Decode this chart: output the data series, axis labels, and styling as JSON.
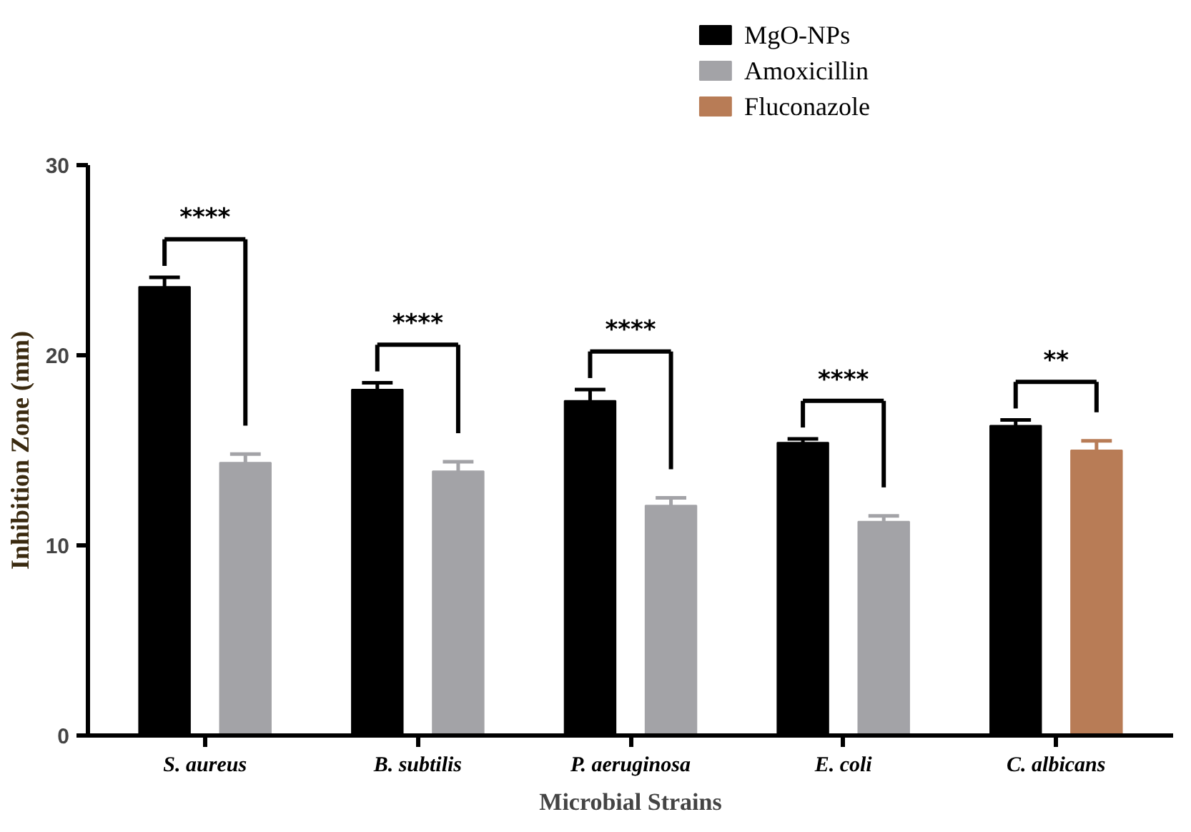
{
  "chart_data": {
    "type": "bar",
    "categories": [
      "S. aureus",
      "B. subtilis",
      "P. aeruginosa",
      "E. coli",
      "C. albicans"
    ],
    "series": [
      {
        "name": "MgO-NPs",
        "color": "#000000",
        "values": [
          23.6,
          18.2,
          17.6,
          15.4,
          16.3
        ],
        "errors": [
          0.5,
          0.35,
          0.6,
          0.2,
          0.3
        ]
      },
      {
        "name": "Amoxicillin",
        "color": "#a3a3a7",
        "values": [
          14.35,
          13.9,
          12.1,
          11.25,
          null
        ],
        "errors": [
          0.45,
          0.5,
          0.4,
          0.3,
          null
        ]
      },
      {
        "name": "Fluconazole",
        "color": "#b87c56",
        "values": [
          null,
          null,
          null,
          null,
          15.0
        ],
        "errors": [
          null,
          null,
          null,
          null,
          0.5
        ]
      }
    ],
    "xlabel": "Microbial Strains",
    "ylabel": "Inhibition Zone (mm)",
    "ylim": [
      0,
      30
    ],
    "yticks": [
      0,
      10,
      20,
      30
    ],
    "annotations": [
      "****",
      "****",
      "****",
      "****",
      "**"
    ],
    "legend": "top",
    "grid": false
  }
}
